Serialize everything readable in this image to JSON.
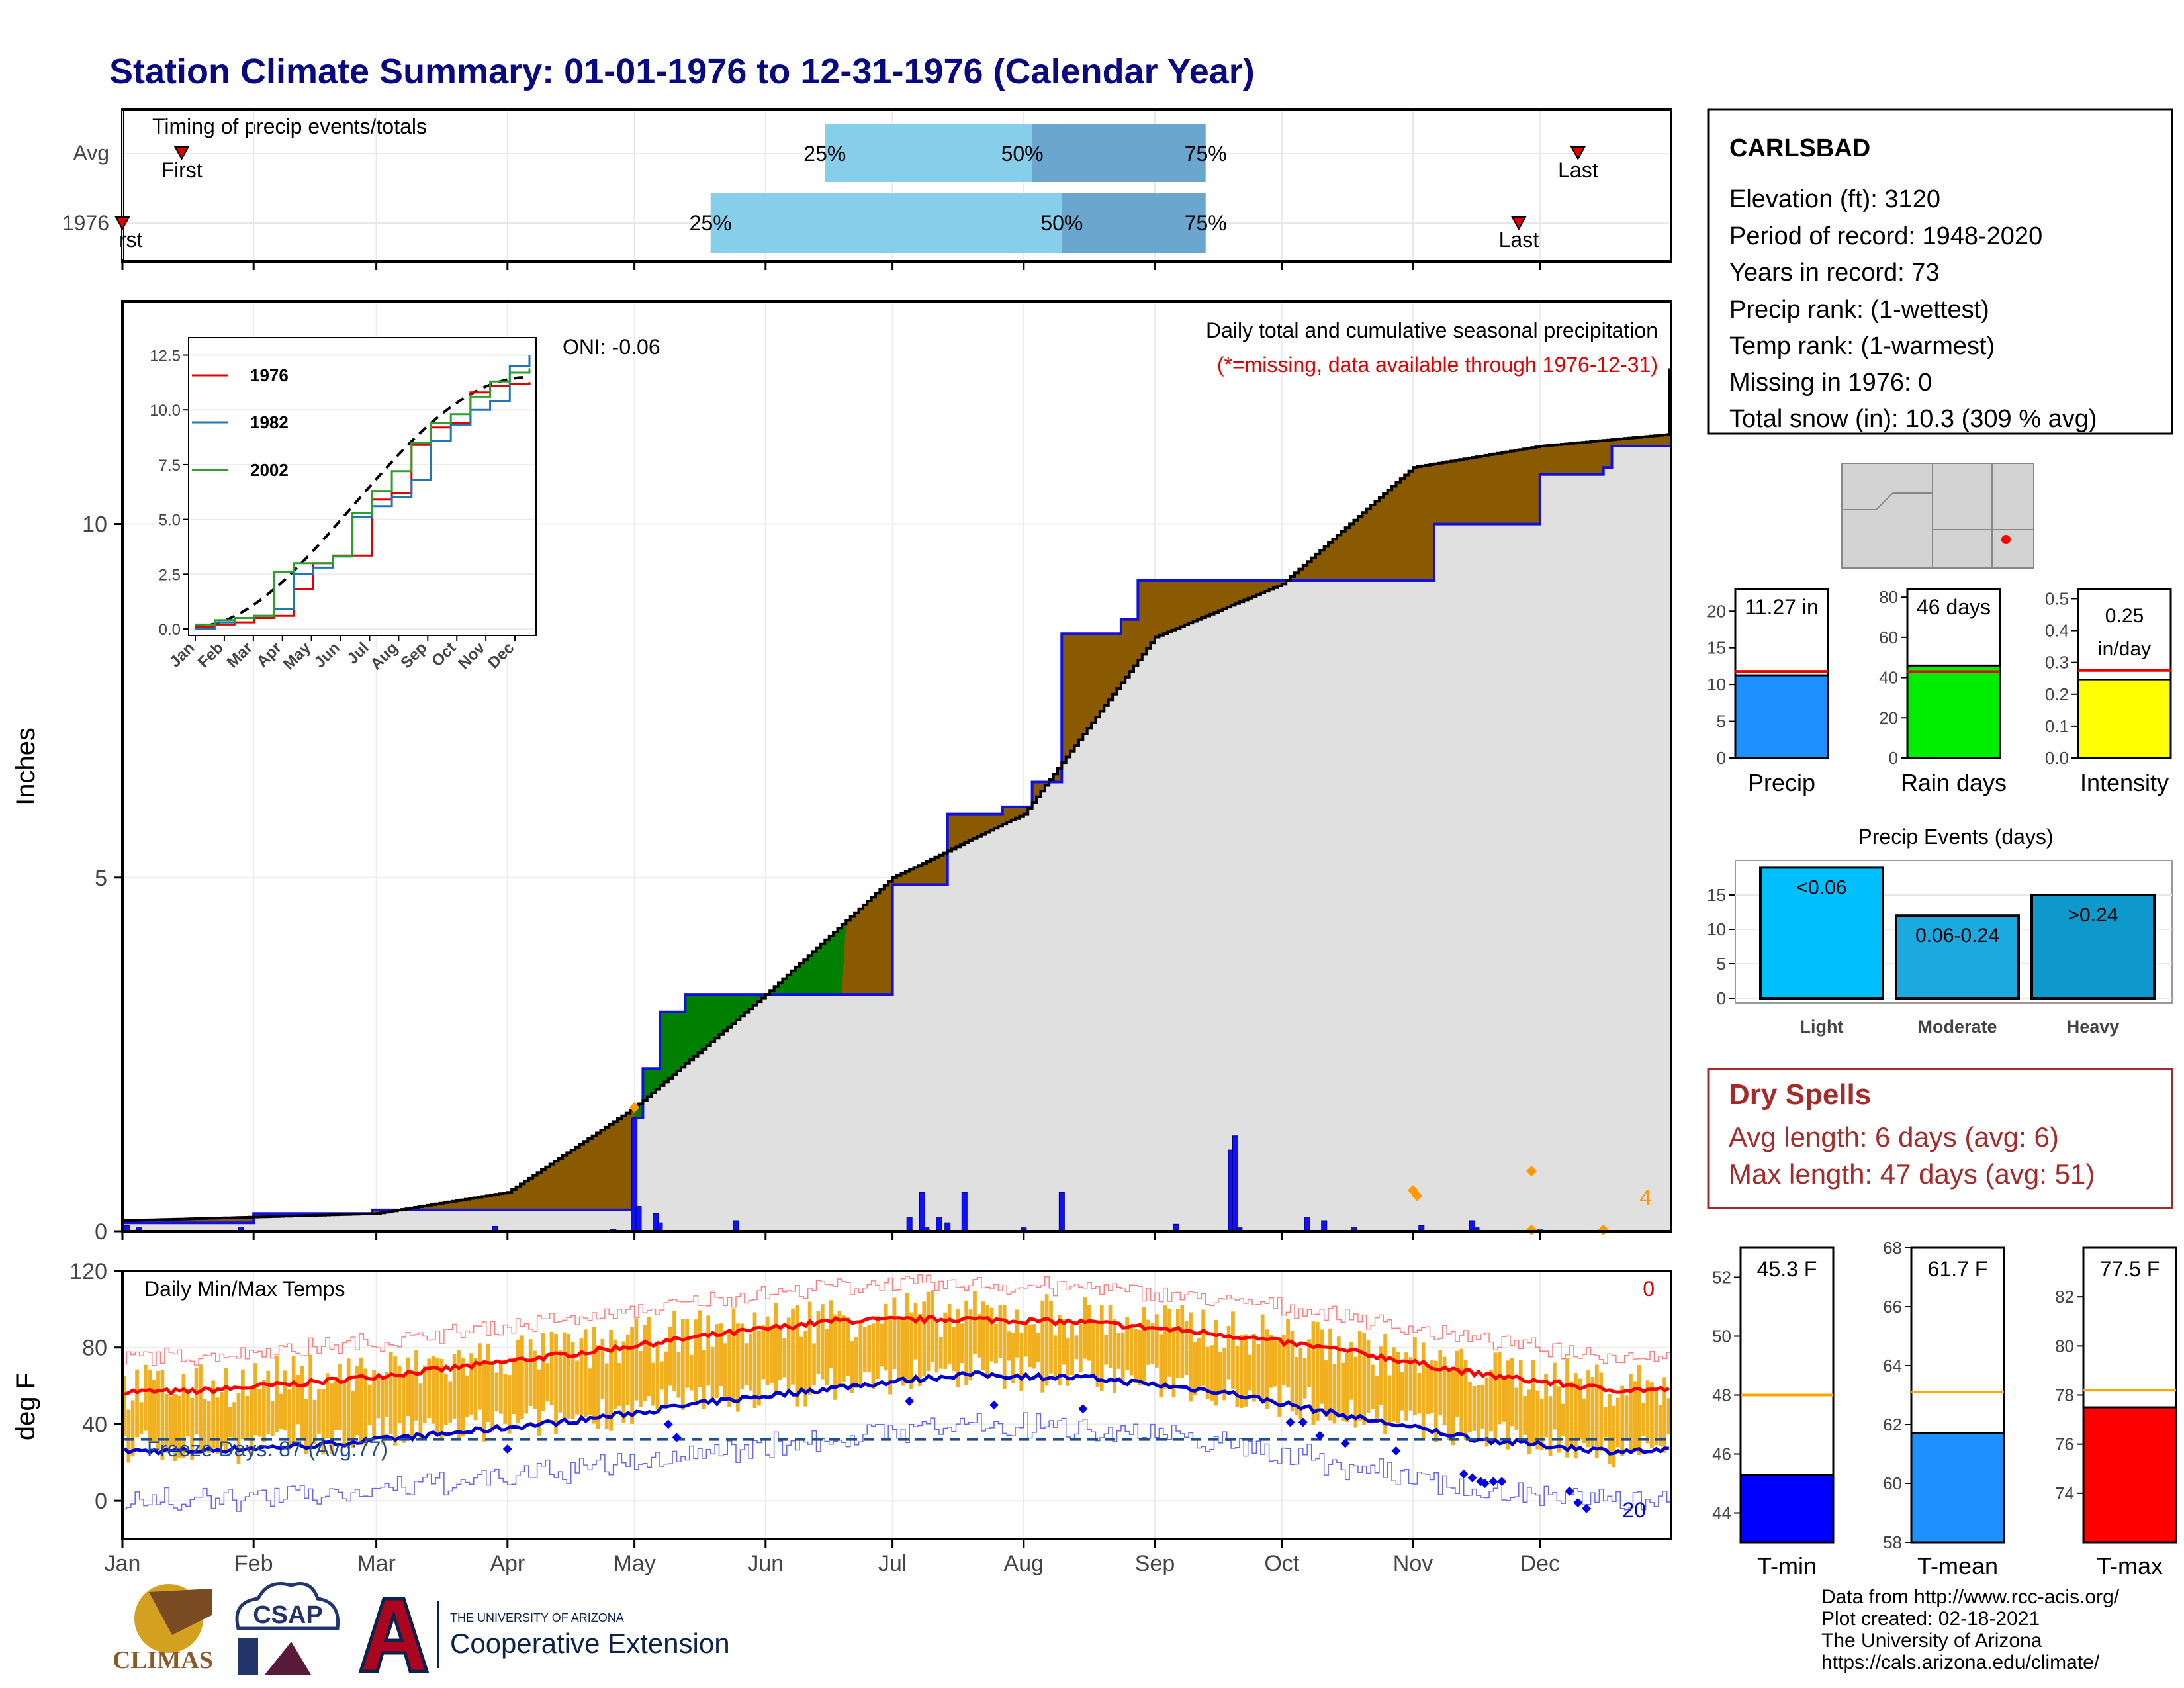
{
  "title": "Station Climate Summary: 01-01-1976 to 12-31-1976 (Calendar Year)",
  "colors": {
    "title": "#0a0a80",
    "cum_above": "#8a5a00",
    "cum_below": "#008000",
    "cum_fill": "#e0e0e0",
    "avg_line": "#1010e0",
    "q1": "#87ceeb",
    "q2": "#6ba6cf",
    "tmax": "#ff0000",
    "tmin": "#0000cc",
    "bars": "#f0b020",
    "dry": "#a52a2a"
  },
  "timing": {
    "label": "Timing of precip events/totals",
    "rows": [
      "Avg",
      "1976"
    ],
    "avg_markers": {
      "first": "First",
      "last": "Last",
      "q25": "25%",
      "q50": "50%",
      "q75": "75%"
    },
    "yr_markers": {
      "first": "rst",
      "last": "Last",
      "q25": "25%",
      "q50": "50%",
      "q75": "75%"
    },
    "avg_doy": {
      "first": 14,
      "q25": 166,
      "q50": 215,
      "q75": 256,
      "last": 344
    },
    "yr_doy": {
      "first": 1,
      "q25": 139,
      "q50": 222,
      "q75": 256,
      "last": 330
    }
  },
  "station": {
    "name": "CARLSBAD",
    "lines": [
      "Elevation (ft): 3120",
      "Period of record: 1948-2020",
      "Years in record: 73",
      "Precip rank:  (1-wettest)",
      "Temp rank:  (1-warmest)",
      "Missing in 1976: 0",
      "Total snow (in): 10.3 (309 % avg)"
    ]
  },
  "precip_panel": {
    "ylabel": "Inches",
    "note1": "Daily total and cumulative seasonal precipitation",
    "note2": "(*=missing, data available through 1976-12-31)",
    "oni": "ONI: -0.06",
    "count_label": "4",
    "ymax": 12.5,
    "yticks": [
      0,
      5,
      10
    ],
    "months": [
      "Jan",
      "Feb",
      "Mar",
      "Apr",
      "May",
      "Jun",
      "Jul",
      "Aug",
      "Sep",
      "Oct",
      "Nov",
      "Dec"
    ]
  },
  "inset": {
    "yticks": [
      "0.0",
      "2.5",
      "5.0",
      "7.5",
      "10.0",
      "12.5"
    ],
    "months": [
      "Jan",
      "Feb",
      "Mar",
      "Apr",
      "May",
      "Jun",
      "Jul",
      "Aug",
      "Sep",
      "Oct",
      "Nov",
      "Dec"
    ],
    "legend": [
      "1976",
      "1982",
      "2002"
    ]
  },
  "temp_panel": {
    "ylabel": "deg F",
    "label": "Daily Min/Max Temps",
    "freeze": "Freeze Days: 87 (Avg:77)",
    "count_hot": "0",
    "count_cold": "20",
    "yticks": [
      0,
      40,
      80,
      120
    ]
  },
  "summary_bars": [
    {
      "name": "Precip",
      "value_label": "11.27 in",
      "value": 11.27,
      "avg": 11.8,
      "ymax": 23,
      "ticks": [
        "0",
        "5",
        "10",
        "15",
        "20"
      ],
      "color": "#1e90ff"
    },
    {
      "name": "Rain days",
      "value_label": "46 days",
      "value": 46,
      "avg": 43,
      "ymax": 84,
      "ticks": [
        "0",
        "20",
        "40",
        "60",
        "80"
      ],
      "color": "#00ee00"
    },
    {
      "name": "Intensity",
      "value_label": "0.25 in/day",
      "value": 0.245,
      "avg": 0.275,
      "ymax": 0.53,
      "ticks": [
        "0.0",
        "0.1",
        "0.2",
        "0.3",
        "0.4",
        "0.5"
      ],
      "color": "#ffff00"
    }
  ],
  "events": {
    "title": "Precip Events (days)",
    "ticks": [
      "0",
      "5",
      "10",
      "15"
    ],
    "bars": [
      {
        "cat": "Light",
        "label": "<0.06",
        "value": 19,
        "color": "#00bfff"
      },
      {
        "cat": "Moderate",
        "label": "0.06-0.24",
        "value": 12,
        "color": "#1ba9e0"
      },
      {
        "cat": "Heavy",
        "label": ">0.24",
        "value": 15,
        "color": "#0e99cc"
      }
    ]
  },
  "dry_spells": {
    "title": "Dry Spells",
    "avg": "Avg length: 6 days (avg: 6)",
    "max": "Max length: 47 days (avg: 51)"
  },
  "temp_bars": [
    {
      "name": "T-min",
      "value_label": "45.3 F",
      "value": 45.3,
      "avg": 48.0,
      "ymin": 43,
      "ymax": 53,
      "ticks": [
        "44",
        "46",
        "48",
        "50",
        "52"
      ],
      "color": "#0000ff"
    },
    {
      "name": "T-mean",
      "value_label": "61.7 F",
      "value": 61.7,
      "avg": 63.1,
      "ymin": 58,
      "ymax": 68,
      "ticks": [
        "58",
        "60",
        "62",
        "64",
        "66",
        "68"
      ],
      "color": "#1e90ff"
    },
    {
      "name": "T-max",
      "value_label": "77.5 F",
      "value": 77.5,
      "avg": 78.2,
      "ymin": 72,
      "ymax": 84,
      "ticks": [
        "74",
        "76",
        "78",
        "80",
        "82"
      ],
      "color": "#ff0000"
    }
  ],
  "credits": [
    "Data from http://www.rcc-acis.org/",
    "Plot created: 02-18-2021",
    "The University of Arizona",
    "https://cals.arizona.edu/climate/"
  ],
  "logos": {
    "climas": "CLIMAS",
    "csap": "CSAP",
    "uofa_small": "THE UNIVERSITY OF ARIZONA",
    "coop": "Cooperative Extension"
  },
  "chart_data": {
    "type": "area",
    "title": "Daily total and cumulative seasonal precipitation",
    "ylabel": "Inches",
    "ylim": [
      0,
      12.5
    ],
    "x": [
      "01-01",
      "02-01",
      "03-01",
      "04-01",
      "05-01",
      "06-01",
      "07-01",
      "08-01",
      "09-01",
      "10-01",
      "11-01",
      "12-01",
      "12-31"
    ],
    "series": [
      {
        "name": "1976",
        "values": [
          0.15,
          0.2,
          0.25,
          0.55,
          1.75,
          3.35,
          5.0,
          5.9,
          8.4,
          9.15,
          10.8,
          11.1,
          11.27
        ]
      }
    ],
    "temps": {
      "type": "bar",
      "ylabel": "deg F",
      "ylim": [
        -20,
        120
      ],
      "x": [
        "Jan",
        "Feb",
        "Mar",
        "Apr",
        "May",
        "Jun",
        "Jul",
        "Aug",
        "Sep",
        "Oct",
        "Nov",
        "Dec"
      ],
      "avg_max": [
        57,
        62,
        69,
        77,
        86,
        94,
        95,
        93,
        87,
        78,
        66,
        58
      ],
      "avg_min": [
        26,
        29,
        35,
        42,
        51,
        59,
        66,
        64,
        57,
        44,
        32,
        26
      ],
      "freeze_line": 32
    }
  }
}
